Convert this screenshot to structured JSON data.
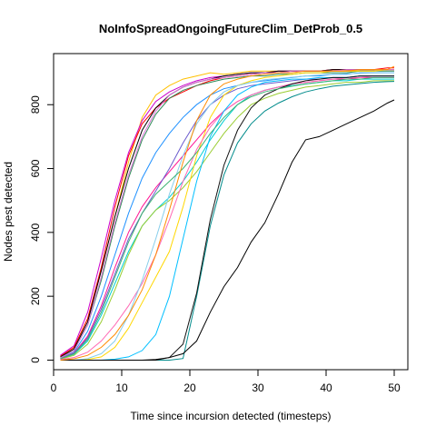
{
  "chart_data": {
    "type": "line",
    "title": "NoInfoSpreadOngoingFutureClim_DetProb_0.5",
    "xlabel": "Time since incursion detected (timesteps)",
    "ylabel": "Nodes pest detected",
    "xlim": [
      0,
      52
    ],
    "ylim": [
      -30,
      960
    ],
    "xticks": [
      0,
      10,
      20,
      30,
      40,
      50
    ],
    "yticks": [
      0,
      200,
      400,
      600,
      800
    ],
    "grid": false,
    "legend": "none",
    "x": [
      1,
      3,
      5,
      7,
      9,
      11,
      13,
      15,
      17,
      19,
      21,
      23,
      25,
      27,
      29,
      31,
      33,
      35,
      37,
      39,
      41,
      43,
      45,
      47,
      49,
      50
    ],
    "series": [
      {
        "color": "#FFC000",
        "values": [
          10,
          40,
          130,
          280,
          450,
          620,
          760,
          830,
          860,
          880,
          890,
          900,
          895,
          900,
          905,
          905,
          905,
          905,
          905,
          905,
          905,
          905,
          905,
          905,
          910,
          910
        ]
      },
      {
        "color": "#CC00CC",
        "values": [
          15,
          45,
          150,
          320,
          500,
          650,
          750,
          810,
          840,
          860,
          875,
          885,
          890,
          895,
          900,
          900,
          905,
          905,
          905,
          905,
          910,
          910,
          910,
          910,
          910,
          910
        ]
      },
      {
        "color": "#FF0000",
        "values": [
          12,
          40,
          130,
          290,
          480,
          640,
          740,
          790,
          820,
          840,
          860,
          875,
          885,
          890,
          895,
          900,
          900,
          905,
          905,
          905,
          910,
          910,
          910,
          910,
          915,
          915
        ]
      },
      {
        "color": "#000000",
        "values": [
          10,
          35,
          120,
          280,
          450,
          600,
          720,
          790,
          830,
          855,
          870,
          880,
          890,
          895,
          900,
          900,
          905,
          905,
          905,
          905,
          910,
          910,
          910,
          910,
          910,
          910
        ]
      },
      {
        "color": "#2E8B57",
        "values": [
          8,
          30,
          110,
          250,
          420,
          570,
          690,
          770,
          820,
          845,
          860,
          870,
          880,
          885,
          890,
          890,
          895,
          895,
          900,
          900,
          900,
          900,
          905,
          905,
          905,
          905
        ]
      },
      {
        "color": "#1E90FF",
        "values": [
          6,
          25,
          90,
          200,
          330,
          460,
          570,
          650,
          710,
          760,
          800,
          830,
          850,
          860,
          870,
          875,
          880,
          885,
          890,
          890,
          895,
          895,
          900,
          900,
          900,
          900
        ]
      },
      {
        "color": "#FF1493",
        "values": [
          5,
          22,
          75,
          170,
          290,
          400,
          480,
          540,
          590,
          640,
          690,
          740,
          780,
          810,
          830,
          845,
          855,
          865,
          870,
          875,
          880,
          880,
          885,
          885,
          885,
          885
        ]
      },
      {
        "color": "#6A5ACD",
        "values": [
          5,
          20,
          70,
          160,
          270,
          380,
          460,
          530,
          600,
          680,
          750,
          800,
          830,
          850,
          860,
          865,
          870,
          875,
          880,
          880,
          885,
          885,
          890,
          890,
          890,
          890
        ]
      },
      {
        "color": "#00CED1",
        "values": [
          4,
          18,
          60,
          140,
          240,
          340,
          420,
          470,
          510,
          560,
          620,
          690,
          750,
          800,
          830,
          845,
          855,
          860,
          865,
          870,
          875,
          875,
          880,
          880,
          880,
          880
        ]
      },
      {
        "color": "#9ACD32",
        "values": [
          3,
          15,
          50,
          120,
          220,
          330,
          420,
          470,
          500,
          540,
          590,
          650,
          710,
          760,
          800,
          820,
          835,
          845,
          855,
          860,
          865,
          870,
          870,
          875,
          875,
          875
        ]
      },
      {
        "color": "#FFD700",
        "values": [
          0,
          0,
          2,
          10,
          40,
          100,
          180,
          260,
          340,
          480,
          640,
          760,
          830,
          860,
          875,
          885,
          890,
          895,
          900,
          900,
          905,
          905,
          905,
          905,
          910,
          910
        ]
      },
      {
        "color": "#FF69B4",
        "values": [
          2,
          8,
          25,
          60,
          110,
          170,
          240,
          330,
          440,
          560,
          660,
          730,
          780,
          810,
          830,
          845,
          855,
          865,
          870,
          875,
          880,
          885,
          885,
          890,
          890,
          890
        ]
      },
      {
        "color": "#87CEEB",
        "values": [
          0,
          0,
          5,
          20,
          60,
          140,
          250,
          380,
          520,
          640,
          740,
          800,
          840,
          860,
          870,
          878,
          882,
          886,
          890,
          893,
          895,
          897,
          898,
          899,
          900,
          900
        ]
      },
      {
        "color": "#00BFFF",
        "values": [
          0,
          0,
          0,
          0,
          3,
          10,
          30,
          80,
          200,
          380,
          560,
          700,
          780,
          830,
          855,
          870,
          875,
          880,
          880,
          885,
          885,
          885,
          890,
          890,
          890,
          890
        ]
      },
      {
        "color": "#008B8B",
        "values": [
          0,
          0,
          0,
          0,
          0,
          0,
          0,
          0,
          0,
          5,
          200,
          420,
          580,
          680,
          740,
          780,
          805,
          825,
          840,
          850,
          858,
          862,
          866,
          870,
          872,
          873
        ]
      },
      {
        "color": "#111111",
        "values": [
          0,
          0,
          0,
          0,
          0,
          0,
          0,
          0,
          8,
          50,
          210,
          440,
          610,
          720,
          790,
          830,
          850,
          865,
          875,
          880,
          885,
          885,
          890,
          890,
          890,
          890
        ]
      },
      {
        "color": "#000000",
        "values": [
          0,
          0,
          0,
          0,
          0,
          0,
          0,
          2,
          8,
          20,
          60,
          150,
          230,
          290,
          370,
          430,
          520,
          620,
          690,
          700,
          720,
          740,
          760,
          780,
          805,
          815
        ]
      },
      {
        "color": "#3CB371",
        "values": [
          4,
          20,
          65,
          150,
          260,
          370,
          460,
          520,
          560,
          600,
          650,
          710,
          760,
          800,
          825,
          840,
          850,
          858,
          865,
          870,
          875,
          880,
          880,
          885,
          885,
          885
        ]
      },
      {
        "color": "#DA70D6",
        "values": [
          7,
          30,
          110,
          260,
          430,
          580,
          700,
          780,
          830,
          855,
          870,
          880,
          885,
          890,
          895,
          900,
          900,
          905,
          905,
          905,
          905,
          910,
          910,
          910,
          910,
          910
        ]
      },
      {
        "color": "#FF8C00",
        "values": [
          0,
          4,
          15,
          40,
          80,
          140,
          220,
          330,
          470,
          620,
          750,
          830,
          865,
          880,
          890,
          895,
          900,
          900,
          905,
          905,
          905,
          905,
          910,
          910,
          910,
          920
        ]
      }
    ]
  }
}
